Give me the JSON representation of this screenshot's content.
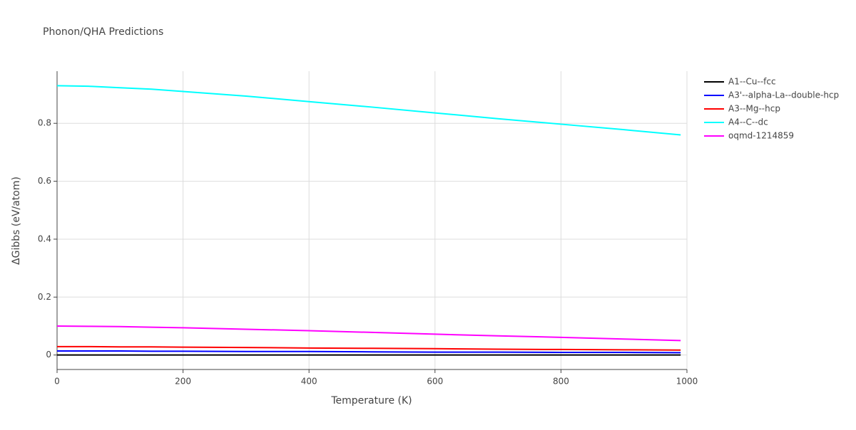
{
  "chart_data": {
    "type": "line",
    "title": "Phonon/QHA Predictions",
    "x_label": "Temperature (K)",
    "y_label": "ΔGibbs (eV/atom)",
    "x": [
      0,
      50,
      100,
      150,
      200,
      300,
      400,
      500,
      600,
      700,
      800,
      900,
      990
    ],
    "series": [
      {
        "name": "A1--Cu--fcc",
        "color": "#000000",
        "values": [
          0,
          0,
          0,
          0,
          0,
          0,
          0,
          0,
          0,
          0,
          0,
          0,
          0
        ]
      },
      {
        "name": "A3'--alpha-La--double-hcp",
        "color": "#0000ff",
        "values": [
          0.014,
          0.014,
          0.014,
          0.013,
          0.013,
          0.012,
          0.012,
          0.011,
          0.01,
          0.01,
          0.009,
          0.009,
          0.008
        ]
      },
      {
        "name": "A3--Mg--hcp",
        "color": "#ff0000",
        "values": [
          0.029,
          0.029,
          0.028,
          0.028,
          0.027,
          0.026,
          0.024,
          0.023,
          0.022,
          0.02,
          0.019,
          0.018,
          0.017
        ]
      },
      {
        "name": "A4--C--dc",
        "color": "#00ffff",
        "values": [
          0.93,
          0.928,
          0.923,
          0.918,
          0.91,
          0.894,
          0.875,
          0.856,
          0.836,
          0.816,
          0.797,
          0.778,
          0.76
        ]
      },
      {
        "name": "oqmd-1214859",
        "color": "#ff00ff",
        "values": [
          0.1,
          0.099,
          0.098,
          0.096,
          0.094,
          0.089,
          0.084,
          0.078,
          0.072,
          0.066,
          0.061,
          0.055,
          0.05
        ]
      }
    ],
    "xlim": [
      0,
      1000
    ],
    "xticks": [
      0,
      200,
      400,
      600,
      800,
      1000
    ],
    "ylim": [
      -0.05,
      0.98
    ],
    "yticks": [
      0,
      0.2,
      0.4,
      0.6,
      0.8
    ],
    "grid": true,
    "legend": "right"
  }
}
